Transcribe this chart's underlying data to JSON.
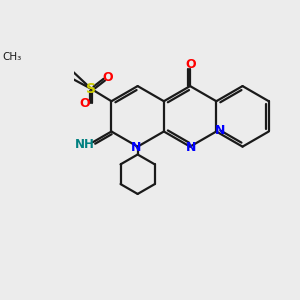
{
  "background_color": "#ececec",
  "bond_color": "#1a1a1a",
  "N_color": "#0000ff",
  "O_color": "#ff0000",
  "S_color": "#cccc00",
  "NH_color": "#008080",
  "figsize": [
    3.0,
    3.0
  ],
  "dpi": 100,
  "xlim": [
    -1.5,
    8.5
  ],
  "ylim": [
    -4.5,
    5.5
  ]
}
